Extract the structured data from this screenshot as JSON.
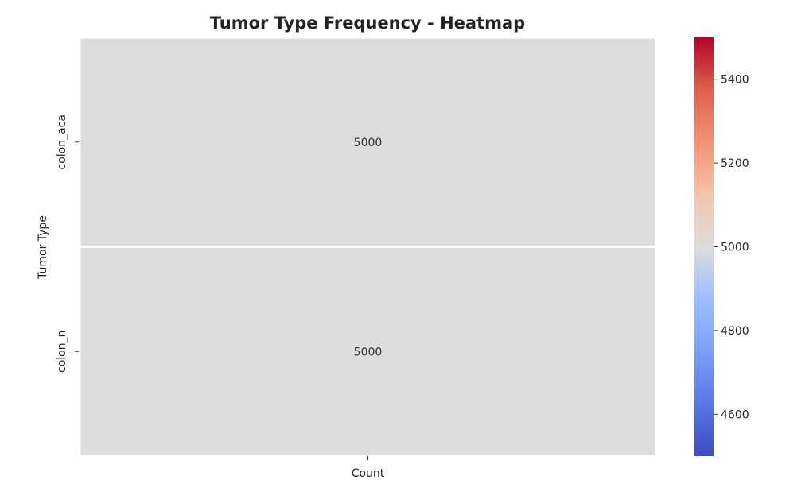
{
  "chart_data": {
    "type": "heatmap",
    "title": "Tumor Type Frequency - Heatmap",
    "xlabel": "Count",
    "ylabel": "Tumor Type",
    "x_categories": [
      "Count"
    ],
    "y_categories": [
      "colon_aca",
      "colon_n"
    ],
    "values": [
      [
        5000
      ],
      [
        5000
      ]
    ],
    "cell_labels": [
      [
        "5000"
      ],
      [
        "5000"
      ]
    ],
    "colormap": "coolwarm",
    "colorbar": {
      "range": [
        4500,
        5500
      ],
      "ticks": [
        4600,
        4800,
        5000,
        5200,
        5400
      ],
      "tick_labels": [
        "4600",
        "4800",
        "5000",
        "5200",
        "5400"
      ],
      "placement": "right"
    },
    "cell_color": "#dddddd"
  }
}
